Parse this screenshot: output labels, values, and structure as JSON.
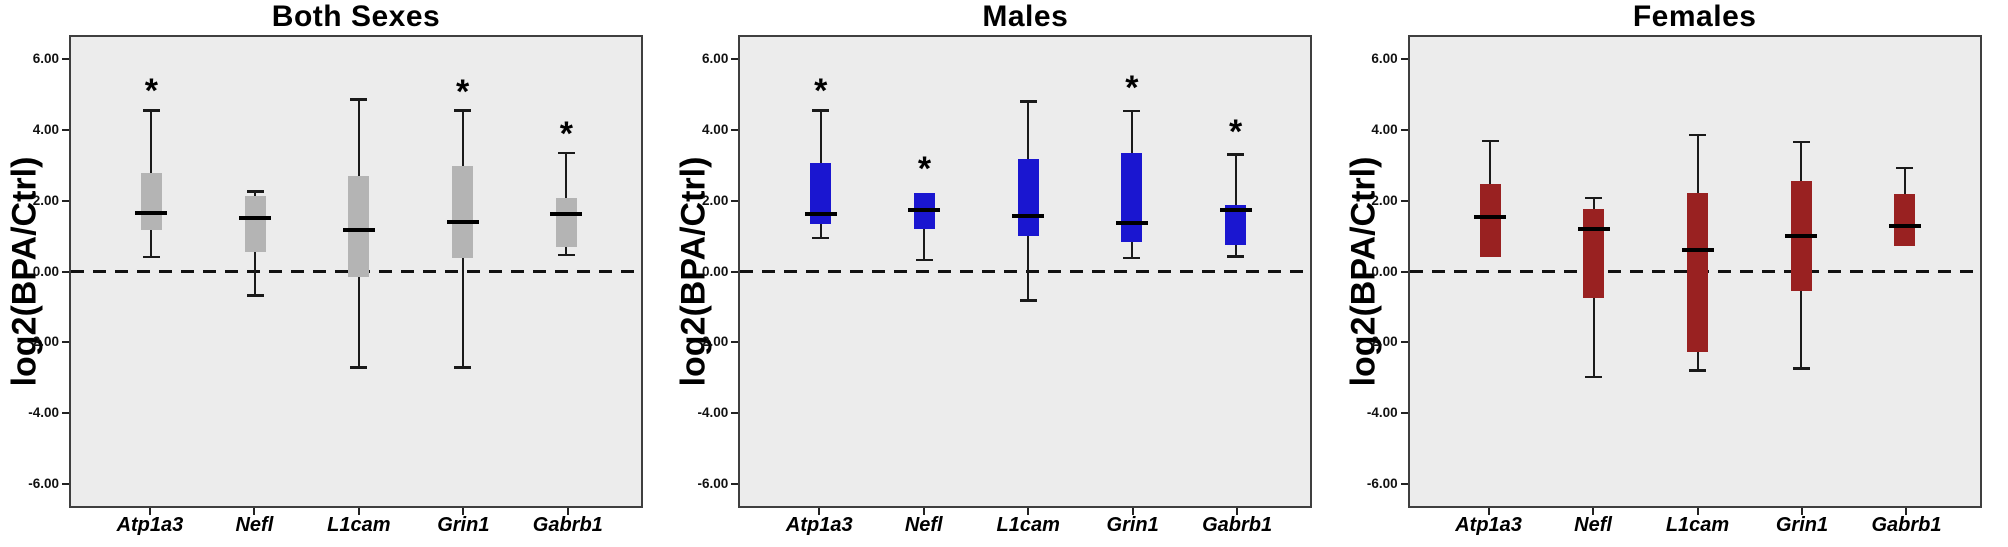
{
  "figure": {
    "y_axis_label": "log2(BPA/Ctrl)",
    "y_ticks": [
      "6.00",
      "4.00",
      "2.00",
      "0.00",
      "-2.00",
      "-4.00",
      "-6.00"
    ],
    "y_tick_values": [
      6,
      4,
      2,
      0,
      -2,
      -4,
      -6
    ],
    "y_range": [
      -6.68,
      6.68
    ],
    "box_center_pcts": [
      14.1,
      32.3,
      50.5,
      68.7,
      86.9
    ],
    "categories": [
      "Atp1a3",
      "Nefl",
      "L1cam",
      "Grin1",
      "Gabrb1"
    ],
    "colors": {
      "plot_background": "#ececec",
      "frame": "#3f3f3f",
      "both_sexes_box": "#b4b4b4",
      "males_box": "#1a16d0",
      "females_box": "#992121",
      "median": "#000000",
      "reference_line": "#111111"
    },
    "significance_symbol": "*"
  },
  "chart_data": [
    {
      "type": "box",
      "title": "Both Sexes",
      "xlabel": "",
      "ylabel": "log2(BPA/Ctrl)",
      "ylim": [
        -6.68,
        6.68
      ],
      "reference_line_y": 0,
      "box_color": "#b4b4b4",
      "categories": [
        "Atp1a3",
        "Nefl",
        "L1cam",
        "Grin1",
        "Gabrb1"
      ],
      "series": [
        {
          "name": "Atp1a3",
          "whisker_low": 0.42,
          "q1": 1.18,
          "median": 1.68,
          "q3": 2.8,
          "whisker_high": 4.6,
          "significant": true,
          "asterisk_y": 5.15
        },
        {
          "name": "Nefl",
          "whisker_low": -0.68,
          "q1": 0.56,
          "median": 1.52,
          "q3": 2.14,
          "whisker_high": 2.28,
          "significant": false,
          "asterisk_y": null
        },
        {
          "name": "L1cam",
          "whisker_low": -2.73,
          "q1": -0.17,
          "median": 1.18,
          "q3": 2.73,
          "whisker_high": 4.9,
          "significant": false,
          "asterisk_y": null
        },
        {
          "name": "Grin1",
          "whisker_low": -2.73,
          "q1": 0.37,
          "median": 1.4,
          "q3": 3.0,
          "whisker_high": 4.6,
          "significant": true,
          "asterisk_y": 5.12
        },
        {
          "name": "Gabrb1",
          "whisker_low": 0.48,
          "q1": 0.7,
          "median": 1.63,
          "q3": 2.08,
          "whisker_high": 3.38,
          "significant": true,
          "asterisk_y": 3.92
        }
      ]
    },
    {
      "type": "box",
      "title": "Males",
      "xlabel": "",
      "ylabel": "log2(BPA/Ctrl)",
      "ylim": [
        -6.68,
        6.68
      ],
      "reference_line_y": 0,
      "box_color": "#1a16d0",
      "categories": [
        "Atp1a3",
        "Nefl",
        "L1cam",
        "Grin1",
        "Gabrb1"
      ],
      "series": [
        {
          "name": "Atp1a3",
          "whisker_low": 0.96,
          "q1": 1.35,
          "median": 1.63,
          "q3": 3.1,
          "whisker_high": 4.6,
          "significant": true,
          "asterisk_y": 5.13
        },
        {
          "name": "Nefl",
          "whisker_low": 0.34,
          "q1": 1.21,
          "median": 1.75,
          "q3": 2.25,
          "whisker_high": null,
          "significant": true,
          "asterisk_y": 2.93
        },
        {
          "name": "L1cam",
          "whisker_low": -0.82,
          "q1": 1.01,
          "median": 1.58,
          "q3": 3.2,
          "whisker_high": 4.85,
          "significant": false,
          "asterisk_y": null
        },
        {
          "name": "Grin1",
          "whisker_low": 0.39,
          "q1": 0.84,
          "median": 1.37,
          "q3": 3.37,
          "whisker_high": 4.58,
          "significant": true,
          "asterisk_y": 5.24
        },
        {
          "name": "Gabrb1",
          "whisker_low": 0.44,
          "q1": 0.75,
          "median": 1.76,
          "q3": 1.9,
          "whisker_high": 3.34,
          "significant": true,
          "asterisk_y": 3.97
        }
      ]
    },
    {
      "type": "box",
      "title": "Females",
      "xlabel": "",
      "ylabel": "log2(BPA/Ctrl)",
      "ylim": [
        -6.68,
        6.68
      ],
      "reference_line_y": 0,
      "box_color": "#992121",
      "categories": [
        "Atp1a3",
        "Nefl",
        "L1cam",
        "Grin1",
        "Gabrb1"
      ],
      "series": [
        {
          "name": "Atp1a3",
          "whisker_low": null,
          "q1": 0.42,
          "median": 1.55,
          "q3": 2.5,
          "whisker_high": 3.72,
          "significant": false,
          "asterisk_y": null
        },
        {
          "name": "Nefl",
          "whisker_low": -3.0,
          "q1": -0.75,
          "median": 1.22,
          "q3": 1.77,
          "whisker_high": 2.1,
          "significant": false,
          "asterisk_y": null
        },
        {
          "name": "L1cam",
          "whisker_low": -2.82,
          "q1": -2.28,
          "median": 0.62,
          "q3": 2.25,
          "whisker_high": 3.9,
          "significant": false,
          "asterisk_y": null
        },
        {
          "name": "Grin1",
          "whisker_low": -2.76,
          "q1": -0.56,
          "median": 1.01,
          "q3": 2.58,
          "whisker_high": 3.7,
          "significant": false,
          "asterisk_y": null
        },
        {
          "name": "Gabrb1",
          "whisker_low": null,
          "q1": 0.73,
          "median": 1.3,
          "q3": 2.22,
          "whisker_high": 2.95,
          "significant": false,
          "asterisk_y": null
        }
      ]
    }
  ]
}
